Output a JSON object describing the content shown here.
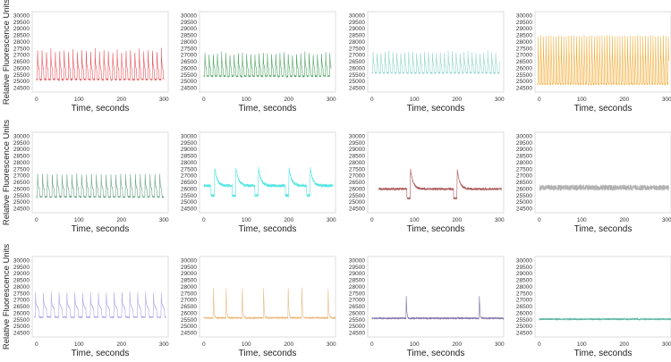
{
  "chart_data": {
    "type": "line",
    "layout": "3 rows x 4 columns small multiples",
    "xlabel": "Time, seconds",
    "ylabel": "Relative Fluorescence Units",
    "xlim": [
      -10,
      310
    ],
    "ylim": [
      24200,
      30300
    ],
    "xticks": [
      "0",
      "100",
      "200",
      "300"
    ],
    "yticks": [
      "24500",
      "25000",
      "25500",
      "26000",
      "26500",
      "27000",
      "27500",
      "28000",
      "28500",
      "29000",
      "29500",
      "30000"
    ],
    "grid": false,
    "panels": [
      {
        "color": "#e8434b",
        "baseline": 25150,
        "peak": 27500,
        "period": 10.4,
        "t_start": 0,
        "t_end": 300,
        "noise": 60
      },
      {
        "color": "#3d9a52",
        "baseline": 25400,
        "peak": 27250,
        "period": 9.8,
        "t_start": 0,
        "t_end": 300,
        "noise": 60
      },
      {
        "color": "#86d2c4",
        "baseline": 25650,
        "peak": 27350,
        "period": 9.3,
        "t_start": 0,
        "t_end": 300,
        "noise": 60
      },
      {
        "color": "#f2a526",
        "baseline": 24800,
        "peak": 28700,
        "period": 6.0,
        "t_start": -5,
        "t_end": 305,
        "noise": 80
      },
      {
        "color": "#5f9a7c",
        "baseline": 25400,
        "peak": 27250,
        "period": 11.5,
        "t_start": 0,
        "t_end": 300,
        "noise": 60
      },
      {
        "color": "#43e2e0",
        "baseline": 26250,
        "peak": 27600,
        "spike_times": [
          25,
          75,
          128,
          200,
          250
        ],
        "dip": 25500,
        "t_start": 0,
        "t_end": 305,
        "noise": 120
      },
      {
        "color": "#a34848",
        "baseline": 26000,
        "peak": 27500,
        "spike_times": [
          90,
          200
        ],
        "dip": 25300,
        "t_start": 15,
        "t_end": 305,
        "noise": 90
      },
      {
        "color": "#a8a8a8",
        "baseline": 26100,
        "t_start": 0,
        "t_end": 305,
        "noise": 220
      },
      {
        "color": "#a99ce6",
        "baseline": 25700,
        "peak": 27700,
        "period": 18.5,
        "t_start": -5,
        "t_end": 305,
        "noise": 60
      },
      {
        "color": "#e9b274",
        "baseline": 25650,
        "peak": 28050,
        "spike_times": [
          22,
          52,
          90,
          140,
          198,
          230,
          292
        ],
        "t_start": 0,
        "t_end": 310,
        "noise": 70
      },
      {
        "color": "#6b5d99",
        "baseline": 25620,
        "peak": 27400,
        "spike_times": [
          80,
          252
        ],
        "t_start": 0,
        "t_end": 310,
        "noise": 60
      },
      {
        "color": "#3fa894",
        "baseline": 25550,
        "t_start": 0,
        "t_end": 310,
        "noise": 60
      }
    ]
  }
}
